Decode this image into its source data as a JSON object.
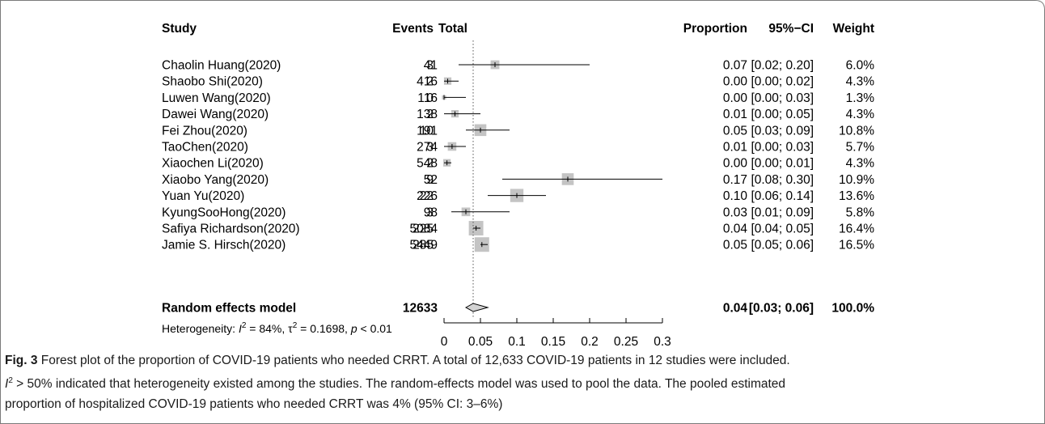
{
  "colors": {
    "box_fill": "#c4c4c4",
    "ci_line": "#000000",
    "border": "#7a7a7a",
    "diamond_fill": "#d3d3d3"
  },
  "chart_data": {
    "type": "forest",
    "headers": {
      "study": "Study",
      "events": "Events",
      "total": "Total",
      "proportion": "Proportion",
      "ci": "95%−CI",
      "weight": "Weight"
    },
    "studies": [
      {
        "name": "Chaolin Huang(2020)",
        "events": "3",
        "total": "41",
        "prop": 0.07,
        "lower": 0.02,
        "upper": 0.2,
        "prop_text": "0.07",
        "ci_text": "[0.02; 0.20]",
        "weight_text": "6.0%",
        "weight": 6.0
      },
      {
        "name": "Shaobo Shi(2020)",
        "events": "2",
        "total": "416",
        "prop": 0.005,
        "lower": 0.0,
        "upper": 0.02,
        "prop_text": "0.00",
        "ci_text": "[0.00; 0.02]",
        "weight_text": "4.3%",
        "weight": 4.3
      },
      {
        "name": "Luwen Wang(2020)",
        "events": "0",
        "total": "116",
        "prop": 0.0,
        "lower": 0.0,
        "upper": 0.03,
        "prop_text": "0.00",
        "ci_text": "[0.00; 0.03]",
        "weight_text": "1.3%",
        "weight": 1.3
      },
      {
        "name": "Dawei Wang(2020)",
        "events": "2",
        "total": "138",
        "prop": 0.015,
        "lower": 0.0,
        "upper": 0.05,
        "prop_text": "0.01",
        "ci_text": "[0.00; 0.05]",
        "weight_text": "4.3%",
        "weight": 4.3
      },
      {
        "name": "Fei Zhou(2020)",
        "events": "10",
        "total": "191",
        "prop": 0.05,
        "lower": 0.03,
        "upper": 0.09,
        "prop_text": "0.05",
        "ci_text": "[0.03; 0.09]",
        "weight_text": "10.8%",
        "weight": 10.8
      },
      {
        "name": "TaoChen(2020)",
        "events": "3",
        "total": "274",
        "prop": 0.011,
        "lower": 0.0,
        "upper": 0.03,
        "prop_text": "0.01",
        "ci_text": "[0.00; 0.03]",
        "weight_text": "5.7%",
        "weight": 5.7
      },
      {
        "name": "Xiaochen Li(2020)",
        "events": "2",
        "total": "548",
        "prop": 0.004,
        "lower": 0.0,
        "upper": 0.01,
        "prop_text": "0.00",
        "ci_text": "[0.00; 0.01]",
        "weight_text": "4.3%",
        "weight": 4.3
      },
      {
        "name": "Xiaobo Yang(2020)",
        "events": "9",
        "total": "52",
        "prop": 0.17,
        "lower": 0.08,
        "upper": 0.3,
        "prop_text": "0.17",
        "ci_text": "[0.08; 0.30]",
        "weight_text": "10.9%",
        "weight": 10.9
      },
      {
        "name": "Yuan Yu(2020)",
        "events": "22",
        "total": "226",
        "prop": 0.1,
        "lower": 0.06,
        "upper": 0.14,
        "prop_text": "0.10",
        "ci_text": "[0.06; 0.14]",
        "weight_text": "13.6%",
        "weight": 13.6
      },
      {
        "name": "KyungSooHong(2020)",
        "events": "3",
        "total": "98",
        "prop": 0.03,
        "lower": 0.01,
        "upper": 0.09,
        "prop_text": "0.03",
        "ci_text": "[0.01; 0.09]",
        "weight_text": "5.8%",
        "weight": 5.8
      },
      {
        "name": "Safiya Richardson(2020)",
        "events": "225",
        "total": "5084",
        "prop": 0.044,
        "lower": 0.04,
        "upper": 0.05,
        "prop_text": "0.04",
        "ci_text": "[0.04; 0.05]",
        "weight_text": "16.4%",
        "weight": 16.4
      },
      {
        "name": "Jamie S. Hirsch(2020)",
        "events": "285",
        "total": "5449",
        "prop": 0.052,
        "lower": 0.05,
        "upper": 0.06,
        "prop_text": "0.05",
        "ci_text": "[0.05; 0.06]",
        "weight_text": "16.5%",
        "weight": 16.5
      }
    ],
    "summary": {
      "name": "Random effects model",
      "total": "12633",
      "prop": 0.04,
      "lower": 0.03,
      "upper": 0.06,
      "prop_text": "0.04",
      "ci_text": "[0.03; 0.06]",
      "weight_text": "100.0%"
    },
    "reference_line": 0.04,
    "heterogeneity": {
      "prefix": "Heterogeneity: ",
      "i2_symbol": "I",
      "i2_value": " = 84%, ",
      "tau_symbol": "τ",
      "tau_value": " = 0.1698, ",
      "p_symbol": "p",
      "p_value": " < 0.01"
    },
    "x_ticks": [
      "0",
      "0.05",
      "0.1",
      "0.15",
      "0.2",
      "0.25",
      "0.3"
    ],
    "x_tick_values": [
      0,
      0.05,
      0.1,
      0.15,
      0.2,
      0.25,
      0.3
    ],
    "xlim": [
      0,
      0.3
    ]
  },
  "caption": {
    "fig_label": "Fig. 3",
    "line1": " Forest plot of the proportion of COVID-19 patients who needed CRRT. A total of 12,633 COVID-19 patients in 12 studies were included.",
    "i2_symbol": "I",
    "line2_rest": " > 50% indicated that heterogeneity existed among the studies. The random-effects model was used to pool the data. The pooled estimated",
    "line3": "proportion of hospitalized COVID-19 patients who needed CRRT was 4% (95% CI: 3–6%)"
  }
}
